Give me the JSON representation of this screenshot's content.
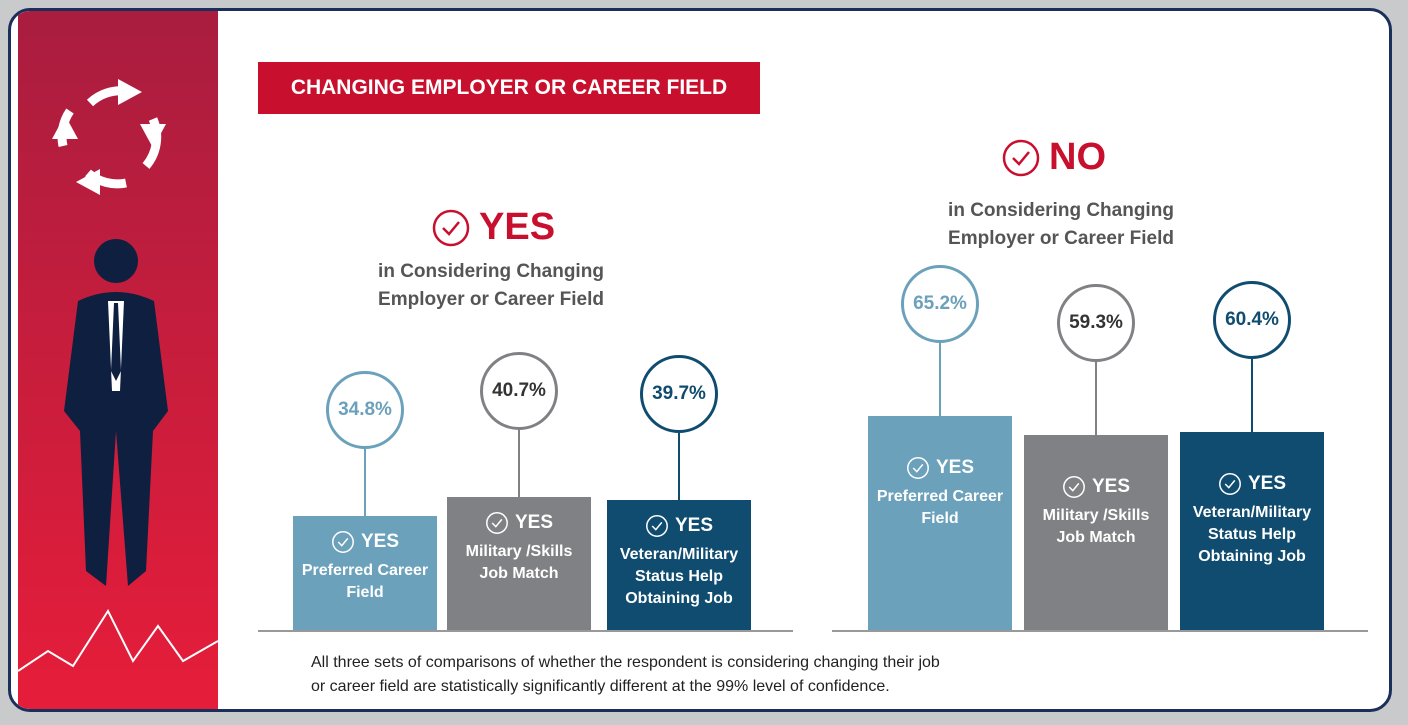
{
  "title": "CHANGING EMPLOYER OR CAREER FIELD",
  "chart_data": [
    {
      "type": "bar",
      "heading": "YES",
      "subtitle": [
        "in Considering Changing",
        "Employer or Career Field"
      ],
      "bar_label": "YES",
      "categories": [
        "Preferred Career Field",
        "Military /Skills Job Match",
        "Veteran/Military Status Help Obtaining Job"
      ],
      "values": [
        34.8,
        40.7,
        39.7
      ],
      "value_labels": [
        "34.8%",
        "40.7%",
        "39.7%"
      ],
      "colors": [
        "#6ba1bb",
        "#808184",
        "#0f4c6f"
      ],
      "ylim": [
        0,
        100
      ]
    },
    {
      "type": "bar",
      "heading": "NO",
      "subtitle": [
        "in Considering Changing",
        "Employer or Career Field"
      ],
      "bar_label": "YES",
      "categories": [
        "Preferred Career Field",
        "Military /Skills Job Match",
        "Veteran/Military Status Help Obtaining Job"
      ],
      "values": [
        65.2,
        59.3,
        60.4
      ],
      "value_labels": [
        "65.2%",
        "59.3%",
        "60.4%"
      ],
      "colors": [
        "#6ba1bb",
        "#808184",
        "#0f4c6f"
      ],
      "ylim": [
        0,
        100
      ]
    }
  ],
  "footnote": [
    "All three sets of comparisons of whether the respondent is considering changing their job",
    "or career field are statistically significantly different at the 99% level of confidence."
  ]
}
